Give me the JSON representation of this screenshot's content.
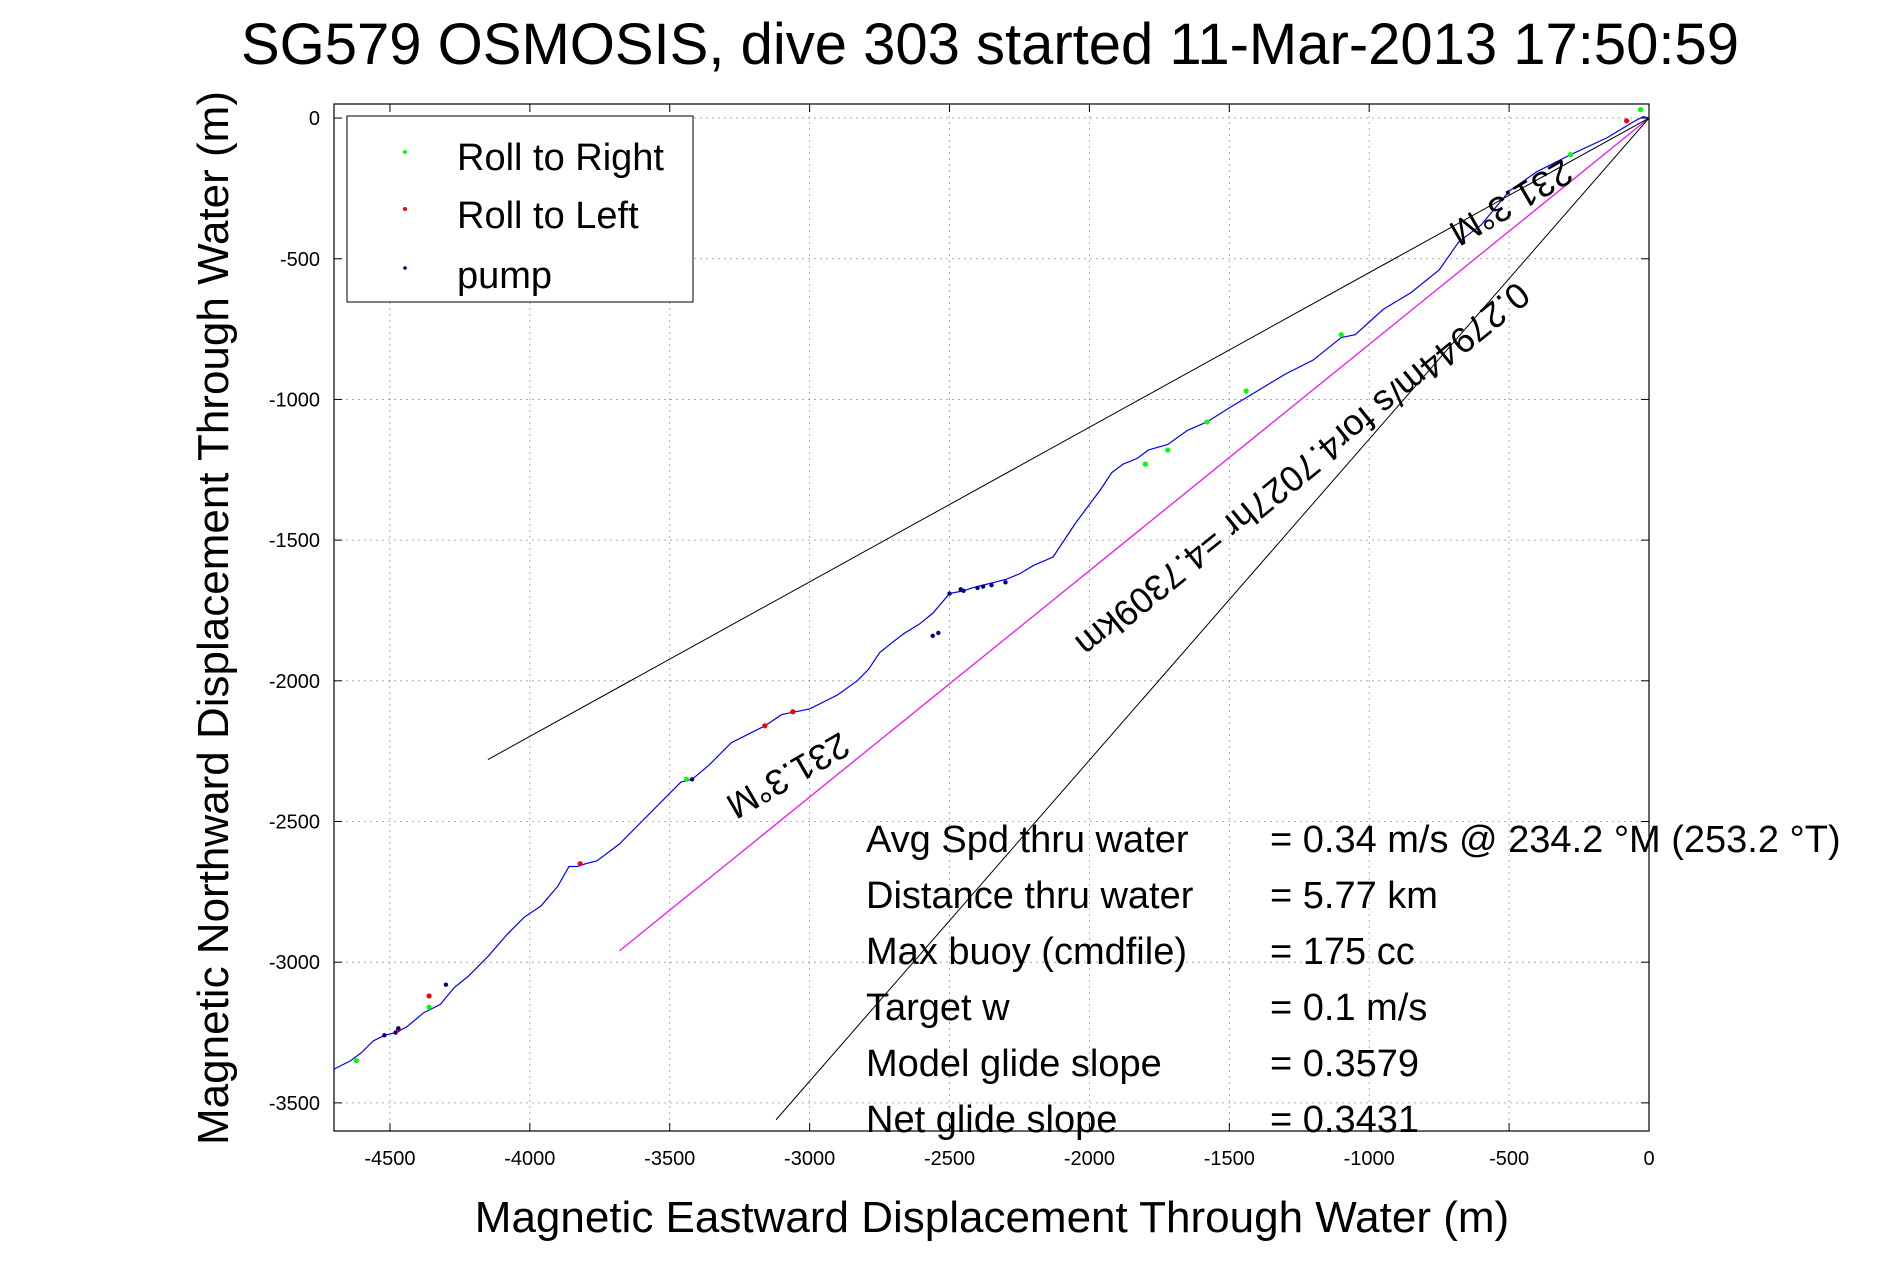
{
  "title": "SG579 OSMOSIS, dive 303 started 11-Mar-2013 17:50:59",
  "xlabel": "Magnetic Eastward Displacement Through Water (m)",
  "ylabel": "Magnetic Northward Displacement Through Water (m)",
  "legend": [
    {
      "label": "Roll to Right",
      "color": "#00ff00"
    },
    {
      "label": "Roll to Left",
      "color": "#ff0000"
    },
    {
      "label": "pump",
      "color": "#000080"
    }
  ],
  "annotations": {
    "heading_upper": "231.3°M",
    "heading_lower": "231.3°M",
    "speed_line": "0.27944m/s for4.7027hr =4.7309km"
  },
  "stats": [
    {
      "label": "Avg Spd thru water",
      "value": "=  0.34 m/s @ 234.2 °M (253.2 °T)"
    },
    {
      "label": "Distance thru water",
      "value": "=  5.77 km"
    },
    {
      "label": "Max buoy (cmdfile)",
      "value": "= 175 cc"
    },
    {
      "label": "Target w",
      "value": "= 0.1 m/s"
    },
    {
      "label": "Model glide slope",
      "value": "= 0.3579"
    },
    {
      "label": "Net glide slope",
      "value": "= 0.3431"
    }
  ],
  "colors": {
    "track": "#0000ff",
    "roll_right": "#00ff00",
    "roll_left": "#ff0000",
    "pump": "#000080",
    "course_line": "#ff00ff",
    "cone_lines": "#000000"
  },
  "chart_data": {
    "type": "line",
    "xlim": [
      -4700,
      0
    ],
    "ylim": [
      -3600,
      50
    ],
    "xticks": [
      -4500,
      -4000,
      -3500,
      -3000,
      -2500,
      -2000,
      -1500,
      -1000,
      -500,
      0
    ],
    "yticks": [
      0,
      -500,
      -1000,
      -1500,
      -2000,
      -2500,
      -3000,
      -3500
    ],
    "grid": true,
    "legend_position": "top-left",
    "series": [
      {
        "name": "track",
        "x": [
          0,
          -20,
          -50,
          -150,
          -280,
          -400,
          -500,
          -600,
          -680,
          -750,
          -850,
          -950,
          -1050,
          -1100,
          -1200,
          -1300,
          -1400,
          -1500,
          -1580,
          -1650,
          -1720,
          -1790,
          -1830,
          -1880,
          -1920,
          -1960,
          -2050,
          -2130,
          -2200,
          -2250,
          -2300,
          -2340,
          -2380,
          -2420,
          -2450,
          -2500,
          -2560,
          -2610,
          -2660,
          -2700,
          -2750,
          -2790,
          -2830,
          -2900,
          -3000,
          -3100,
          -3160,
          -3200,
          -3280,
          -3360,
          -3420,
          -3460,
          -3520,
          -3600,
          -3680,
          -3760,
          -3800,
          -3830,
          -3860,
          -3900,
          -3960,
          -4020,
          -4080,
          -4150,
          -4220,
          -4270,
          -4320,
          -4380,
          -4440,
          -4480,
          -4500,
          -4520,
          -4560,
          -4600,
          -4640,
          -4700
        ],
        "y": [
          0,
          5,
          -10,
          -70,
          -130,
          -190,
          -260,
          -380,
          -440,
          -540,
          -620,
          -680,
          -770,
          -780,
          -860,
          -910,
          -970,
          -1030,
          -1080,
          -1110,
          -1160,
          -1180,
          -1210,
          -1230,
          -1260,
          -1320,
          -1440,
          -1560,
          -1590,
          -1620,
          -1640,
          -1650,
          -1660,
          -1670,
          -1680,
          -1690,
          -1760,
          -1800,
          -1830,
          -1860,
          -1900,
          -1960,
          -2000,
          -2050,
          -2100,
          -2120,
          -2160,
          -2180,
          -2220,
          -2300,
          -2350,
          -2360,
          -2420,
          -2500,
          -2580,
          -2640,
          -2650,
          -2660,
          -2660,
          -2730,
          -2800,
          -2840,
          -2900,
          -2980,
          -3050,
          -3090,
          -3150,
          -3180,
          -3230,
          -3250,
          -3255,
          -3260,
          -3280,
          -3320,
          -3350,
          -3380
        ]
      },
      {
        "name": "course",
        "x": [
          0,
          -3680
        ],
        "y": [
          0,
          -2960
        ]
      },
      {
        "name": "cone_upper",
        "x": [
          0,
          -4150
        ],
        "y": [
          0,
          -2280
        ]
      },
      {
        "name": "cone_lower",
        "x": [
          0,
          -3120
        ],
        "y": [
          0,
          -3560
        ]
      }
    ],
    "markers": {
      "roll_right": {
        "x": [
          -30,
          -280,
          -1100,
          -1440,
          -1580,
          -1720,
          -1800,
          -3440,
          -4360,
          -4620
        ],
        "y": [
          30,
          -130,
          -770,
          -970,
          -1080,
          -1180,
          -1230,
          -2350,
          -3160,
          -3350
        ]
      },
      "roll_left": {
        "x": [
          -80,
          -3160,
          -3060,
          -3820,
          -4360,
          -4470
        ],
        "y": [
          -10,
          -2160,
          -2110,
          -2650,
          -3120,
          -3240
        ]
      },
      "pump": {
        "x": [
          -2560,
          -2500,
          -2450,
          -2400,
          -2350,
          -2300,
          -2540,
          -2460,
          -2380,
          -3420,
          -4480,
          -4520,
          -4470,
          -4300
        ],
        "y": [
          -1840,
          -1690,
          -1680,
          -1670,
          -1660,
          -1650,
          -1830,
          -1675,
          -1665,
          -2350,
          -3250,
          -3260,
          -3235,
          -3080
        ]
      }
    }
  }
}
